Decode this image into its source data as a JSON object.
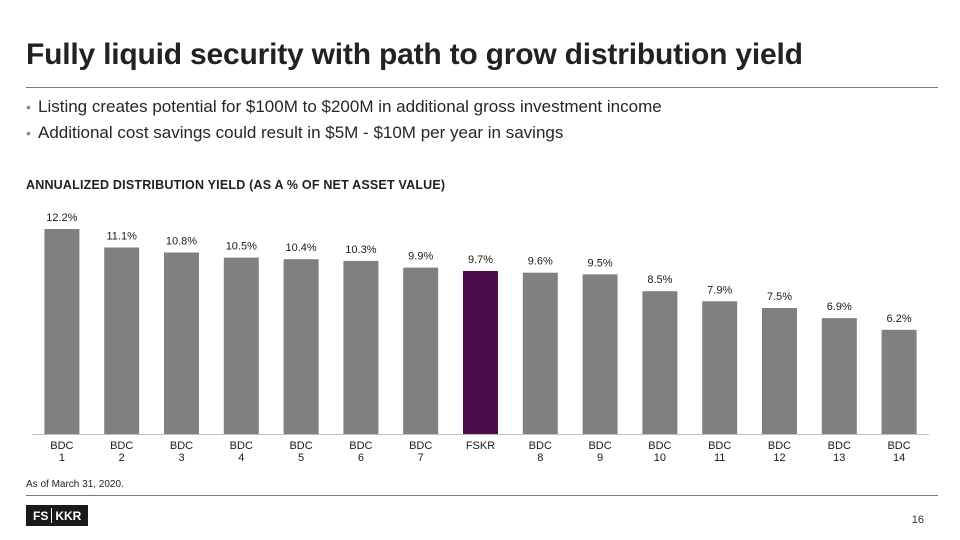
{
  "title": "Fully liquid security with path to grow distribution yield",
  "bullets": [
    "Listing creates potential for $100M to $200M in additional gross investment income",
    "Additional cost savings could result in $5M - $10M per year in savings"
  ],
  "footnote": "As of March 31, 2020.",
  "logo": {
    "left": "FS",
    "right": "KKR"
  },
  "page_number": "16",
  "colors": {
    "bar": "#808080",
    "highlight": "#4a0f4a",
    "text": "#1a1a1a"
  },
  "chart_data": {
    "type": "bar",
    "title": "ANNUALIZED DISTRIBUTION YIELD (AS A % OF NET ASSET VALUE)",
    "categories": [
      [
        "BDC",
        "1"
      ],
      [
        "BDC",
        "2"
      ],
      [
        "BDC",
        "3"
      ],
      [
        "BDC",
        "4"
      ],
      [
        "BDC",
        "5"
      ],
      [
        "BDC",
        "6"
      ],
      [
        "BDC",
        "7"
      ],
      [
        "FSKR"
      ],
      [
        "BDC",
        "8"
      ],
      [
        "BDC",
        "9"
      ],
      [
        "BDC",
        "10"
      ],
      [
        "BDC",
        "11"
      ],
      [
        "BDC",
        "12"
      ],
      [
        "BDC",
        "13"
      ],
      [
        "BDC",
        "14"
      ]
    ],
    "values": [
      12.2,
      11.1,
      10.8,
      10.5,
      10.4,
      10.3,
      9.9,
      9.7,
      9.6,
      9.5,
      8.5,
      7.9,
      7.5,
      6.9,
      6.2
    ],
    "labels": [
      "12.2%",
      "11.1%",
      "10.8%",
      "10.5%",
      "10.4%",
      "10.3%",
      "9.9%",
      "9.7%",
      "9.6%",
      "9.5%",
      "8.5%",
      "7.9%",
      "7.5%",
      "6.9%",
      "6.2%"
    ],
    "highlight": "FSKR",
    "ylim": [
      0,
      12.2
    ],
    "xlabel": "",
    "ylabel": ""
  }
}
